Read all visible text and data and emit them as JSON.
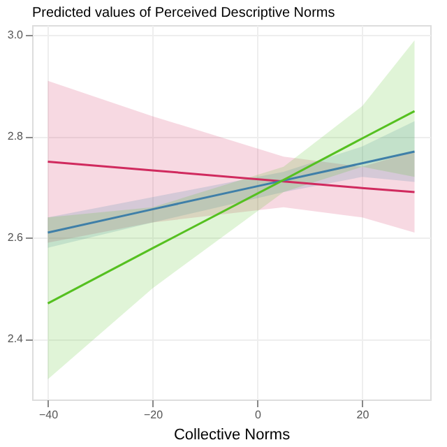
{
  "chart_data": {
    "type": "line",
    "title": "Predicted values of Perceived Descriptive Norms",
    "xlabel": "Collective Norms",
    "x": [
      -40,
      -20,
      5,
      20,
      30
    ],
    "xlim": [
      -43,
      33
    ],
    "xticks": [
      -40,
      -20,
      0,
      20
    ],
    "ylim": [
      2.28,
      3.02
    ],
    "yticks": [
      {
        "value": 2.4,
        "label": "2.4"
      },
      {
        "value": 2.6,
        "label": "2.6"
      },
      {
        "value": 2.8,
        "label": "2.8"
      },
      {
        "value": 3,
        "label": "3.0"
      }
    ],
    "grid": true,
    "series": [
      {
        "color": "#d02a5e",
        "values": [
          2.75,
          2.733,
          2.711,
          2.698,
          2.69
        ],
        "lower": [
          2.59,
          2.63,
          2.66,
          2.64,
          2.61
        ],
        "upper": [
          2.91,
          2.84,
          2.76,
          2.74,
          2.77
        ]
      },
      {
        "color": "#3f7fa8",
        "values": [
          2.61,
          2.656,
          2.713,
          2.747,
          2.77
        ],
        "lower": [
          2.58,
          2.63,
          2.69,
          2.72,
          2.71
        ],
        "upper": [
          2.64,
          2.68,
          2.73,
          2.78,
          2.83
        ]
      },
      {
        "color": "#55c020",
        "values": [
          2.47,
          2.579,
          2.714,
          2.796,
          2.85
        ],
        "lower": [
          2.32,
          2.5,
          2.69,
          2.74,
          2.72
        ],
        "upper": [
          2.64,
          2.66,
          2.74,
          2.86,
          2.99
        ]
      }
    ]
  }
}
